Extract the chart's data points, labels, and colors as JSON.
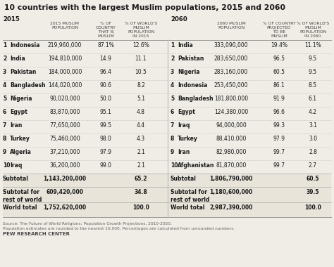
{
  "title": "10 countries with the largest Muslim populations, 2015 and 2060",
  "bg_color": "#f0ede6",
  "title_color": "#1a1a1a",
  "rows_2015": [
    [
      "1",
      "Indonesia",
      "219,960,000",
      "87.1%",
      "12.6%"
    ],
    [
      "2",
      "India",
      "194,810,000",
      "14.9",
      "11.1"
    ],
    [
      "3",
      "Pakistan",
      "184,000,000",
      "96.4",
      "10.5"
    ],
    [
      "4",
      "Bangladesh",
      "144,020,000",
      "90.6",
      "8.2"
    ],
    [
      "5",
      "Nigeria",
      "90,020,000",
      "50.0",
      "5.1"
    ],
    [
      "6",
      "Egypt",
      "83,870,000",
      "95.1",
      "4.8"
    ],
    [
      "7",
      "Iran",
      "77,650,000",
      "99.5",
      "4.4"
    ],
    [
      "8",
      "Turkey",
      "75,460,000",
      "98.0",
      "4.3"
    ],
    [
      "9",
      "Algeria",
      "37,210,000",
      "97.9",
      "2.1"
    ],
    [
      "10",
      "Iraq",
      "36,200,000",
      "99.0",
      "2.1"
    ],
    [
      "",
      "Subtotal",
      "1,143,200,000",
      "",
      "65.2"
    ],
    [
      "",
      "Subtotal for\nrest of world",
      "609,420,000",
      "",
      "34.8"
    ],
    [
      "",
      "World total",
      "1,752,620,000",
      "",
      "100.0"
    ]
  ],
  "rows_2060": [
    [
      "1",
      "India",
      "333,090,000",
      "19.4%",
      "11.1%"
    ],
    [
      "2",
      "Pakistan",
      "283,650,000",
      "96.5",
      "9.5"
    ],
    [
      "3",
      "Nigeria",
      "283,160,000",
      "60.5",
      "9.5"
    ],
    [
      "4",
      "Indonesia",
      "253,450,000",
      "86.1",
      "8.5"
    ],
    [
      "5",
      "Bangladesh",
      "181,800,000",
      "91.9",
      "6.1"
    ],
    [
      "6",
      "Egypt",
      "124,380,000",
      "96.6",
      "4.2"
    ],
    [
      "7",
      "Iraq",
      "94,000,000",
      "99.3",
      "3.1"
    ],
    [
      "8",
      "Turkey",
      "88,410,000",
      "97.9",
      "3.0"
    ],
    [
      "9",
      "Iran",
      "82,980,000",
      "99.7",
      "2.8"
    ],
    [
      "10",
      "Afghanistan",
      "81,870,000",
      "99.7",
      "2.7"
    ],
    [
      "",
      "Subtotal",
      "1,806,790,000",
      "",
      "60.5"
    ],
    [
      "",
      "Subtotal for\nrest of world",
      "1,180,600,000",
      "",
      "39.5"
    ],
    [
      "",
      "World total",
      "2,987,390,000",
      "",
      "100.0"
    ]
  ],
  "source_text": "Source: The Future of World Religions: Population Growth Projections, 2010-2050.\nPopulation estimates are rounded to the nearest 10,000. Percentages are calculated from unrounded numbers.",
  "footer_text": "PEW RESEARCH CENTER",
  "h1_2015": "2015 MUSLIM\nPOPULATION",
  "h2_2015": "% OF\nCOUNTRY\nTHAT IS\nMUSLIM",
  "h3_2015": "% OF WORLD'S\nMUSLIM\nPOPULATION\nIN 2015",
  "h1_2060": "2060 MUSLIM\nPOPULATION",
  "h2_2060": "% OF COUNTRY\nPROJECTED\nTO BE\nMUSLIM",
  "h3_2060": "% OF WORLD'S\nMUSLIM\nPOPULATION\nIN 2060"
}
